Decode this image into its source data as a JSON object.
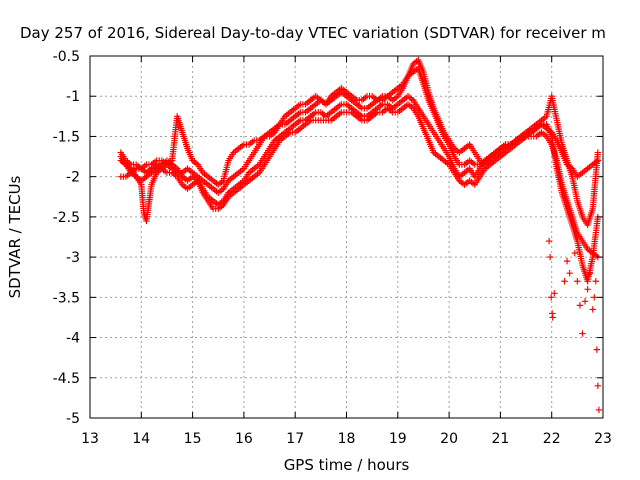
{
  "chart_data": {
    "type": "scatter",
    "title": "Day 257 of 2016, Sidereal Day-to-day VTEC variation (SDTVAR) for receiver m",
    "xlabel": "GPS time / hours",
    "ylabel": "SDTVAR / TECUs",
    "xlim": [
      13,
      23
    ],
    "ylim": [
      -5,
      -0.5
    ],
    "x_ticks": [
      "13",
      "14",
      "15",
      "16",
      "17",
      "18",
      "19",
      "20",
      "21",
      "22",
      "23"
    ],
    "y_ticks": [
      "-0.5",
      "-1",
      "-1.5",
      "-2",
      "-2.5",
      "-3",
      "-3.5",
      "-4",
      "-4.5",
      "-5"
    ],
    "grid": true,
    "legend": "none",
    "marker": "plus",
    "color": "#ff0000",
    "series": [
      {
        "x": [
          13.6,
          13.7,
          13.8,
          13.9,
          14.0,
          14.1,
          14.2,
          14.3,
          14.4,
          14.5,
          14.6,
          14.7,
          14.8,
          14.9,
          15.0,
          15.1,
          15.2,
          15.3,
          15.4,
          15.5,
          15.6,
          15.7,
          15.8,
          15.9,
          16.0,
          16.1,
          16.2,
          16.3,
          16.4,
          16.5,
          16.6,
          16.7,
          16.8,
          16.9,
          17.0,
          17.1,
          17.2,
          17.3,
          17.4,
          17.5,
          17.6,
          17.7,
          17.8,
          17.9,
          18.0,
          18.1,
          18.2,
          18.3,
          18.4,
          18.5,
          18.6,
          18.7,
          18.8,
          18.9,
          19.0,
          19.1,
          19.2,
          19.3,
          19.4,
          19.5,
          19.6,
          19.7,
          19.8,
          19.9,
          20.0,
          20.1,
          20.2,
          20.3,
          20.4,
          20.5,
          20.6,
          20.7,
          20.8,
          20.9,
          21.0,
          21.1,
          21.2,
          21.3,
          21.4,
          21.5,
          21.6,
          21.7,
          21.8,
          21.9,
          22.0,
          22.1,
          22.2,
          22.3,
          22.4,
          22.5,
          22.6,
          22.7,
          22.8,
          22.9
        ],
        "y": [
          -1.75,
          -1.85,
          -1.95,
          -1.9,
          -1.9,
          -1.95,
          -1.9,
          -1.85,
          -1.9,
          -1.95,
          -1.95,
          -2.0,
          -2.1,
          -2.15,
          -2.1,
          -2.05,
          -2.15,
          -2.25,
          -2.3,
          -2.35,
          -2.3,
          -2.2,
          -2.15,
          -2.1,
          -2.05,
          -1.95,
          -1.9,
          -1.85,
          -1.75,
          -1.65,
          -1.55,
          -1.5,
          -1.45,
          -1.4,
          -1.35,
          -1.3,
          -1.3,
          -1.25,
          -1.2,
          -1.2,
          -1.25,
          -1.2,
          -1.15,
          -1.1,
          -1.1,
          -1.15,
          -1.2,
          -1.25,
          -1.25,
          -1.2,
          -1.15,
          -1.1,
          -1.1,
          -1.15,
          -1.1,
          -1.05,
          -1.0,
          -1.05,
          -1.15,
          -1.25,
          -1.35,
          -1.45,
          -1.55,
          -1.65,
          -1.75,
          -1.9,
          -2.0,
          -1.95,
          -1.9,
          -2.0,
          -1.9,
          -1.8,
          -1.75,
          -1.7,
          -1.65,
          -1.6,
          -1.6,
          -1.55,
          -1.5,
          -1.45,
          -1.45,
          -1.4,
          -1.35,
          -1.4,
          -1.45,
          -1.55,
          -1.7,
          -1.85,
          -1.9,
          -2.0,
          -1.95,
          -1.9,
          -1.85,
          -1.8
        ]
      },
      {
        "x": [
          13.6,
          13.7,
          13.8,
          13.9,
          14.0,
          14.1,
          14.2,
          14.3,
          14.4,
          14.5,
          14.6,
          14.7,
          14.8,
          14.9,
          15.0,
          15.1,
          15.2,
          15.3,
          15.4,
          15.5,
          15.6,
          15.7,
          15.8,
          15.9,
          16.0,
          16.1,
          16.2,
          16.3,
          16.4,
          16.5,
          16.6,
          16.7,
          16.8,
          16.9,
          17.0,
          17.1,
          17.2,
          17.3,
          17.4,
          17.5,
          17.6,
          17.7,
          17.8,
          17.9,
          18.0,
          18.1,
          18.2,
          18.3,
          18.4,
          18.5,
          18.6,
          18.7,
          18.8,
          18.9,
          19.0,
          19.1,
          19.2,
          19.3,
          19.4,
          19.5,
          19.6,
          19.7,
          19.8,
          19.9,
          20.0,
          20.1,
          20.2,
          20.3,
          20.4,
          20.5,
          20.6,
          20.7,
          20.8,
          20.9,
          21.0,
          21.1,
          21.2,
          21.3,
          21.4,
          21.5,
          21.6,
          21.7,
          21.8,
          21.9,
          22.0,
          22.1,
          22.2,
          22.3,
          22.4,
          22.5,
          22.6,
          22.7,
          22.8,
          22.9
        ],
        "y": [
          -2.0,
          -2.0,
          -1.95,
          -2.0,
          -2.05,
          -2.0,
          -1.95,
          -1.9,
          -1.85,
          -1.8,
          -1.85,
          -1.9,
          -2.0,
          -2.05,
          -2.0,
          -2.05,
          -2.2,
          -2.3,
          -2.4,
          -2.4,
          -2.35,
          -2.25,
          -2.2,
          -2.15,
          -2.1,
          -2.05,
          -2.0,
          -1.95,
          -1.85,
          -1.75,
          -1.65,
          -1.55,
          -1.5,
          -1.45,
          -1.45,
          -1.4,
          -1.35,
          -1.3,
          -1.3,
          -1.3,
          -1.3,
          -1.3,
          -1.25,
          -1.2,
          -1.2,
          -1.2,
          -1.25,
          -1.3,
          -1.3,
          -1.25,
          -1.2,
          -1.2,
          -1.15,
          -1.2,
          -1.2,
          -1.15,
          -1.1,
          -1.15,
          -1.25,
          -1.4,
          -1.55,
          -1.7,
          -1.75,
          -1.8,
          -1.85,
          -1.95,
          -2.05,
          -2.1,
          -2.05,
          -2.1,
          -2.0,
          -1.9,
          -1.85,
          -1.8,
          -1.75,
          -1.7,
          -1.65,
          -1.6,
          -1.55,
          -1.5,
          -1.5,
          -1.5,
          -1.45,
          -1.5,
          -1.6,
          -1.8,
          -2.1,
          -2.3,
          -2.5,
          -2.7,
          -2.8,
          -2.9,
          -2.95,
          -3.0
        ]
      },
      {
        "x": [
          13.6,
          13.7,
          13.8,
          13.9,
          14.0,
          14.1,
          14.2,
          14.3,
          14.4,
          14.5,
          14.6,
          14.7,
          14.8,
          14.9,
          15.0,
          15.1,
          15.2,
          15.3,
          15.4,
          15.5,
          15.6,
          15.7,
          15.8,
          15.9,
          16.0,
          16.1,
          16.2,
          16.3,
          16.4,
          16.5,
          16.6,
          16.7,
          16.8,
          16.9,
          17.0,
          17.1,
          17.2,
          17.3,
          17.4,
          17.5,
          17.6,
          17.7,
          17.8,
          17.9,
          18.0,
          18.1,
          18.2,
          18.3,
          18.4,
          18.5,
          18.6,
          18.7,
          18.8,
          18.9,
          19.0,
          19.1,
          19.2,
          19.3,
          19.4,
          19.5,
          19.6,
          19.7,
          19.8,
          19.9,
          20.0,
          20.1,
          20.2,
          20.3,
          20.4,
          20.5,
          20.6,
          20.7,
          20.8,
          20.9,
          21.0,
          21.1,
          21.2,
          21.3,
          21.4,
          21.5,
          21.6,
          21.7,
          21.8,
          21.9,
          22.0,
          22.1,
          22.2,
          22.3,
          22.4,
          22.5,
          22.6,
          22.7,
          22.8,
          22.9
        ],
        "y": [
          -1.7,
          -1.8,
          -1.85,
          -1.85,
          -1.9,
          -1.85,
          -1.85,
          -1.8,
          -1.8,
          -1.85,
          -1.9,
          -1.95,
          -1.95,
          -1.9,
          -1.95,
          -2.0,
          -2.05,
          -2.1,
          -2.15,
          -2.2,
          -2.15,
          -2.05,
          -2.0,
          -1.95,
          -1.9,
          -1.8,
          -1.7,
          -1.6,
          -1.5,
          -1.45,
          -1.4,
          -1.35,
          -1.35,
          -1.3,
          -1.25,
          -1.2,
          -1.2,
          -1.15,
          -1.1,
          -1.05,
          -1.1,
          -1.05,
          -1.0,
          -0.95,
          -1.0,
          -1.05,
          -1.1,
          -1.15,
          -1.15,
          -1.1,
          -1.05,
          -1.0,
          -1.0,
          -1.05,
          -1.0,
          -0.9,
          -0.75,
          -0.7,
          -0.65,
          -0.85,
          -1.05,
          -1.2,
          -1.35,
          -1.5,
          -1.6,
          -1.75,
          -1.85,
          -1.85,
          -1.8,
          -1.85,
          -1.85,
          -1.8,
          -1.75,
          -1.7,
          -1.65,
          -1.6,
          -1.6,
          -1.55,
          -1.5,
          -1.45,
          -1.4,
          -1.35,
          -1.3,
          -1.25,
          -1.0,
          -1.3,
          -1.6,
          -1.8,
          -2.0,
          -2.3,
          -2.5,
          -2.6,
          -2.4,
          -1.7
        ]
      },
      {
        "x": [
          13.6,
          13.7,
          13.8,
          13.9,
          14.0,
          14.05,
          14.1,
          14.2,
          14.3,
          14.4,
          14.5,
          14.6,
          14.7,
          14.8,
          14.9,
          15.0,
          15.1,
          15.2,
          15.3,
          15.4,
          15.5,
          15.6,
          15.7,
          15.8,
          15.9,
          16.0,
          16.1,
          16.2,
          16.3,
          16.4,
          16.5,
          16.6,
          16.7,
          16.8,
          16.9,
          17.0,
          17.1,
          17.2,
          17.3,
          17.4,
          17.5,
          17.6,
          17.7,
          17.8,
          17.9,
          18.0,
          18.1,
          18.2,
          18.3,
          18.4,
          18.5,
          18.6,
          18.7,
          18.8,
          18.9,
          19.0,
          19.1,
          19.2,
          19.3,
          19.4,
          19.5,
          19.6,
          19.7,
          19.8,
          19.9,
          20.0,
          20.1,
          20.2,
          20.3,
          20.4,
          20.5,
          20.6,
          20.7,
          20.8,
          20.9,
          21.0,
          21.1,
          21.2,
          21.3,
          21.4,
          21.5,
          21.6,
          21.7,
          21.8,
          21.9,
          22.0,
          22.1,
          22.2,
          22.3,
          22.4,
          22.5,
          22.6,
          22.7,
          22.8,
          22.9
        ],
        "y": [
          -1.8,
          -1.85,
          -1.9,
          -2.0,
          -2.1,
          -2.45,
          -2.55,
          -2.1,
          -1.95,
          -1.9,
          -1.85,
          -1.8,
          -1.25,
          -1.45,
          -1.65,
          -1.8,
          -1.85,
          -1.95,
          -2.0,
          -2.05,
          -2.1,
          -2.05,
          -1.8,
          -1.7,
          -1.65,
          -1.6,
          -1.6,
          -1.55,
          -1.55,
          -1.5,
          -1.5,
          -1.45,
          -1.35,
          -1.25,
          -1.2,
          -1.15,
          -1.1,
          -1.1,
          -1.05,
          -1.0,
          -1.05,
          -1.1,
          -1.0,
          -0.95,
          -0.9,
          -0.95,
          -1.0,
          -1.05,
          -1.05,
          -1.0,
          -1.0,
          -1.05,
          -1.05,
          -1.0,
          -0.95,
          -0.9,
          -0.85,
          -0.75,
          -0.6,
          -0.55,
          -0.7,
          -0.95,
          -1.15,
          -1.3,
          -1.45,
          -1.55,
          -1.65,
          -1.7,
          -1.65,
          -1.6,
          -1.7,
          -1.8,
          -1.85,
          -1.8,
          -1.75,
          -1.7,
          -1.65,
          -1.6,
          -1.55,
          -1.55,
          -1.5,
          -1.45,
          -1.4,
          -1.35,
          -1.35,
          -1.5,
          -1.9,
          -2.2,
          -2.4,
          -2.6,
          -2.8,
          -3.1,
          -3.3,
          -3.0,
          -2.5
        ]
      },
      {
        "x": [
          21.95,
          21.97,
          21.99,
          22.01,
          22.02,
          22.05,
          22.25,
          22.3,
          22.35,
          22.45,
          22.5,
          22.55,
          22.6,
          22.65,
          22.7,
          22.75,
          22.8,
          22.83,
          22.86,
          22.88,
          22.9,
          22.92
        ],
        "y": [
          -2.8,
          -3.0,
          -3.5,
          -3.7,
          -3.75,
          -3.45,
          -3.3,
          -3.05,
          -3.2,
          -2.95,
          -3.3,
          -3.6,
          -3.95,
          -3.55,
          -3.4,
          -3.2,
          -3.65,
          -3.5,
          -3.3,
          -4.15,
          -4.6,
          -4.9
        ]
      }
    ]
  }
}
